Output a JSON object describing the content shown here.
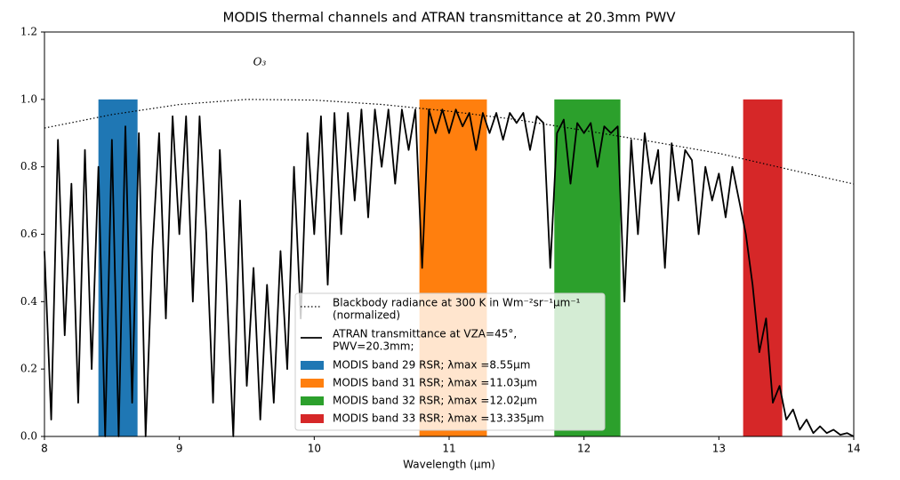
{
  "chart_data": {
    "type": "line",
    "title": "MODIS thermal channels and ATRAN transmittance at 20.3mm PWV",
    "xlabel": "Wavelength (μm)",
    "xlim": [
      8,
      14
    ],
    "ylim": [
      0,
      1.2
    ],
    "xticks": [
      8,
      9,
      10,
      11,
      12,
      13,
      14
    ],
    "yticks": [
      {
        "value": 0,
        "label": "0.0"
      },
      0.2,
      0.4,
      0.6,
      0.8,
      {
        "value": 1,
        "label": "1.0"
      },
      1.2
    ],
    "annotations": [
      "O₃"
    ],
    "bands": [
      {
        "name": [
          "MODIS band 29 RSR; λmax =8.55μm"
        ],
        "color": "#1f77b4",
        "x": [
          8.4,
          8.69
        ],
        "value": 1.0
      },
      {
        "name": [
          "MODIS band 31 RSR; λmax =11.03μm"
        ],
        "color": "#ff7f0e",
        "x": [
          10.78,
          11.28
        ],
        "value": 1.0
      },
      {
        "name": [
          "MODIS band 32 RSR; λmax =12.02μm"
        ],
        "color": "#2ca02c",
        "x": [
          11.78,
          12.27
        ],
        "value": 1.0
      },
      {
        "name": [
          "MODIS band 33 RSR; λmax =13.335μm"
        ],
        "color": "#d62728",
        "x": [
          13.18,
          13.47
        ],
        "value": 1.0
      }
    ],
    "series": [
      {
        "name": [
          "Blackbody radiance at 300 K in Wm⁻²sr⁻¹μm⁻¹",
          "(normalized)"
        ],
        "color": "#000000",
        "style": "dotted",
        "x": [
          8,
          8.5,
          9,
          9.5,
          10,
          10.5,
          11,
          11.5,
          12,
          12.5,
          13,
          13.5,
          14
        ],
        "values": [
          0.915,
          0.955,
          0.985,
          1.0,
          0.998,
          0.985,
          0.965,
          0.94,
          0.908,
          0.875,
          0.84,
          0.794,
          0.749
        ]
      },
      {
        "name": [
          "ATRAN transmittance at VZA=45°,",
          "PWV=20.3mm;"
        ],
        "color": "#000000",
        "style": "solid",
        "x": [
          8.0,
          8.05,
          8.1,
          8.15,
          8.2,
          8.25,
          8.3,
          8.35,
          8.4,
          8.45,
          8.5,
          8.55,
          8.6,
          8.65,
          8.7,
          8.75,
          8.8,
          8.85,
          8.9,
          8.95,
          9.0,
          9.05,
          9.1,
          9.15,
          9.2,
          9.25,
          9.3,
          9.35,
          9.4,
          9.45,
          9.5,
          9.55,
          9.6,
          9.65,
          9.7,
          9.75,
          9.8,
          9.85,
          9.9,
          9.95,
          10.0,
          10.05,
          10.1,
          10.15,
          10.2,
          10.25,
          10.3,
          10.35,
          10.4,
          10.45,
          10.5,
          10.55,
          10.6,
          10.65,
          10.7,
          10.75,
          10.8,
          10.85,
          10.9,
          10.95,
          11.0,
          11.05,
          11.1,
          11.15,
          11.2,
          11.25,
          11.3,
          11.35,
          11.4,
          11.45,
          11.5,
          11.55,
          11.6,
          11.65,
          11.7,
          11.75,
          11.8,
          11.85,
          11.9,
          11.95,
          12.0,
          12.05,
          12.1,
          12.15,
          12.2,
          12.25,
          12.3,
          12.35,
          12.4,
          12.45,
          12.5,
          12.55,
          12.6,
          12.65,
          12.7,
          12.75,
          12.8,
          12.85,
          12.9,
          12.95,
          13.0,
          13.05,
          13.1,
          13.15,
          13.2,
          13.25,
          13.3,
          13.35,
          13.4,
          13.45,
          13.5,
          13.55,
          13.6,
          13.65,
          13.7,
          13.75,
          13.8,
          13.85,
          13.9,
          13.95,
          14.0
        ],
        "values": [
          0.55,
          0.05,
          0.88,
          0.3,
          0.75,
          0.1,
          0.85,
          0.2,
          0.8,
          0.0,
          0.88,
          0.0,
          0.92,
          0.1,
          0.9,
          0.0,
          0.55,
          0.9,
          0.35,
          0.95,
          0.6,
          0.95,
          0.4,
          0.95,
          0.6,
          0.1,
          0.85,
          0.45,
          0.0,
          0.7,
          0.15,
          0.5,
          0.05,
          0.45,
          0.1,
          0.55,
          0.2,
          0.8,
          0.35,
          0.9,
          0.6,
          0.95,
          0.45,
          0.96,
          0.6,
          0.96,
          0.7,
          0.97,
          0.65,
          0.97,
          0.8,
          0.97,
          0.75,
          0.97,
          0.85,
          0.97,
          0.5,
          0.97,
          0.9,
          0.97,
          0.9,
          0.97,
          0.92,
          0.96,
          0.85,
          0.96,
          0.9,
          0.96,
          0.88,
          0.96,
          0.93,
          0.96,
          0.85,
          0.95,
          0.93,
          0.5,
          0.9,
          0.94,
          0.75,
          0.93,
          0.9,
          0.93,
          0.8,
          0.92,
          0.9,
          0.92,
          0.4,
          0.88,
          0.6,
          0.9,
          0.75,
          0.85,
          0.5,
          0.87,
          0.7,
          0.85,
          0.82,
          0.6,
          0.8,
          0.7,
          0.78,
          0.65,
          0.8,
          0.7,
          0.6,
          0.45,
          0.25,
          0.35,
          0.1,
          0.15,
          0.05,
          0.08,
          0.02,
          0.05,
          0.01,
          0.03,
          0.01,
          0.02,
          0.005,
          0.01,
          0.0
        ]
      }
    ]
  }
}
